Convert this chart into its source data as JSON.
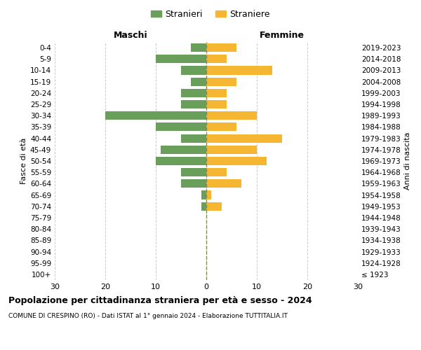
{
  "age_groups": [
    "100+",
    "95-99",
    "90-94",
    "85-89",
    "80-84",
    "75-79",
    "70-74",
    "65-69",
    "60-64",
    "55-59",
    "50-54",
    "45-49",
    "40-44",
    "35-39",
    "30-34",
    "25-29",
    "20-24",
    "15-19",
    "10-14",
    "5-9",
    "0-4"
  ],
  "birth_years": [
    "≤ 1923",
    "1924-1928",
    "1929-1933",
    "1934-1938",
    "1939-1943",
    "1944-1948",
    "1949-1953",
    "1954-1958",
    "1959-1963",
    "1964-1968",
    "1969-1973",
    "1974-1978",
    "1979-1983",
    "1984-1988",
    "1989-1993",
    "1994-1998",
    "1999-2003",
    "2004-2008",
    "2009-2013",
    "2014-2018",
    "2019-2023"
  ],
  "males": [
    0,
    0,
    0,
    0,
    0,
    0,
    1,
    1,
    5,
    5,
    10,
    9,
    5,
    10,
    20,
    5,
    5,
    3,
    5,
    10,
    3
  ],
  "females": [
    0,
    0,
    0,
    0,
    0,
    0,
    3,
    1,
    7,
    4,
    12,
    10,
    15,
    6,
    10,
    4,
    4,
    6,
    13,
    4,
    6
  ],
  "male_color": "#6a9e5b",
  "female_color": "#f5b731",
  "background_color": "#ffffff",
  "grid_color": "#cccccc",
  "title": "Popolazione per cittadinanza straniera per età e sesso - 2024",
  "subtitle": "COMUNE DI CRESPINO (RO) - Dati ISTAT al 1° gennaio 2024 - Elaborazione TUTTITALIA.IT",
  "xlabel_left": "Maschi",
  "xlabel_right": "Femmine",
  "ylabel_left": "Fasce di età",
  "ylabel_right": "Anni di nascita",
  "legend_male": "Stranieri",
  "legend_female": "Straniere",
  "xlim": 30,
  "center_line_color": "#888855"
}
